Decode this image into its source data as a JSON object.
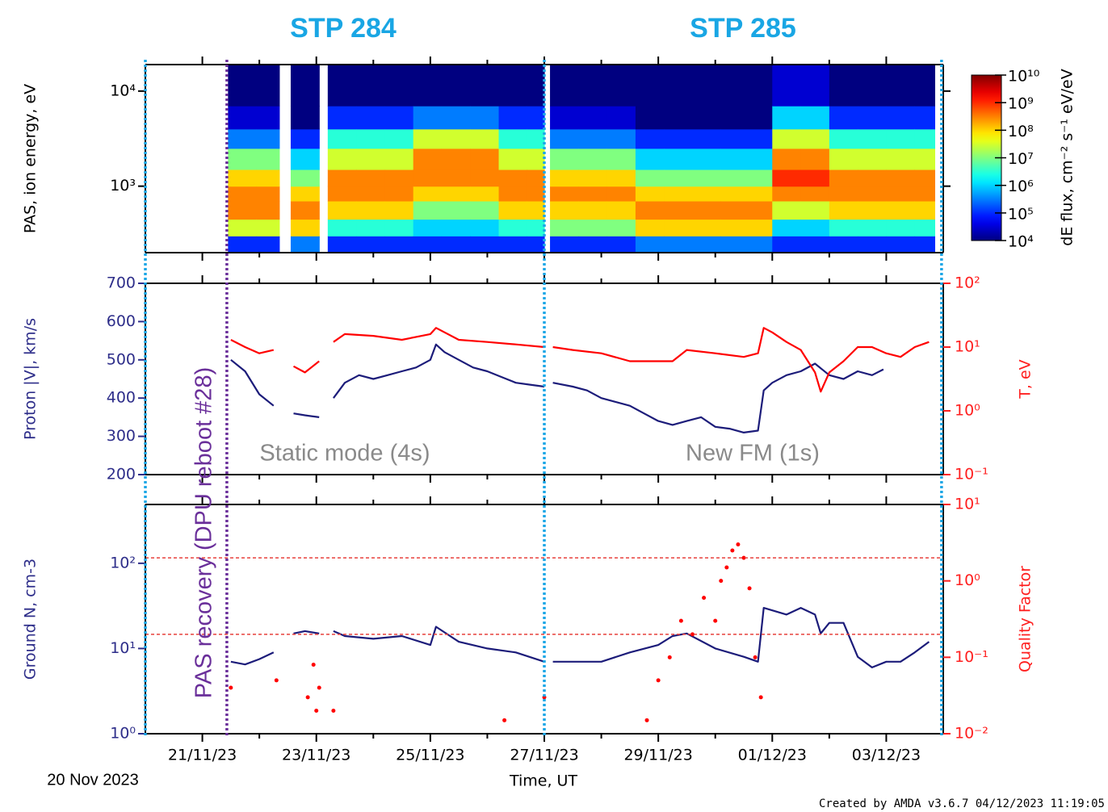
{
  "header": {
    "left": "STP 284",
    "right": "STP 285"
  },
  "annotations": {
    "static": "Static mode (4s)",
    "newfm": "New FM (1s)",
    "recovery": "PAS recovery (DPU reboot #28)"
  },
  "footer": {
    "start_date": "20 Nov 2023",
    "credit": "Created by AMDA v3.6.7 04/12/2023 11:19:05"
  },
  "markers": [
    {
      "x": 0,
      "color": "#1aa6e6"
    },
    {
      "x": 7,
      "color": "#1aa6e6"
    },
    {
      "x": 13.97,
      "color": "#1aa6e6"
    },
    {
      "x": 1.43,
      "color": "#6a2f9a"
    }
  ],
  "chart_data": [
    {
      "type": "heatmap",
      "ylabel": "PAS, ion energy, eV",
      "ycolor": "#000000",
      "ylog": true,
      "ylim": [
        200,
        19000
      ],
      "yticks": [
        {
          "value": 1000,
          "label": "10³"
        },
        {
          "value": 10000,
          "label": "10⁴"
        }
      ],
      "x_edges": [
        1.45,
        1.95,
        2.35,
        2.55,
        3.05,
        3.2,
        3.7,
        4.2,
        4.7,
        5.2,
        5.7,
        6.2,
        6.7,
        7.0,
        7.1,
        7.6,
        8.1,
        8.6,
        9.1,
        9.6,
        10.1,
        10.5,
        11.0,
        11.5,
        12.0,
        12.5,
        13.0,
        13.5,
        13.85
      ],
      "y_edges": [
        200,
        300,
        450,
        700,
        1000,
        1500,
        2500,
        4000,
        7000,
        19000
      ],
      "z": [
        [
          100000,
          30000000,
          300000000,
          300000000,
          100000000,
          10000000,
          300000,
          30000,
          10000
        ],
        [
          100000,
          30000000,
          300000000,
          300000000,
          100000000,
          10000000,
          300000,
          30000,
          10000
        ],
        null,
        [
          300000,
          100000000,
          300000000,
          100000000,
          10000000,
          1000000,
          100000,
          10000,
          10000
        ],
        null,
        [
          100000,
          3000000,
          100000000,
          300000000,
          300000000,
          30000000,
          3000000,
          100000,
          10000
        ],
        [
          100000,
          3000000,
          100000000,
          300000000,
          300000000,
          30000000,
          3000000,
          100000,
          10000
        ],
        [
          100000,
          3000000,
          100000000,
          300000000,
          300000000,
          30000000,
          3000000,
          100000,
          10000
        ],
        [
          100000,
          1000000,
          10000000,
          100000000,
          300000000,
          300000000,
          30000000,
          300000,
          10000
        ],
        [
          100000,
          1000000,
          10000000,
          100000000,
          300000000,
          300000000,
          30000000,
          300000,
          10000
        ],
        [
          100000,
          1000000,
          10000000,
          100000000,
          300000000,
          300000000,
          30000000,
          300000,
          10000
        ],
        [
          100000,
          3000000,
          100000000,
          300000000,
          300000000,
          30000000,
          3000000,
          100000,
          10000
        ],
        [
          100000,
          3000000,
          100000000,
          300000000,
          300000000,
          30000000,
          3000000,
          100000,
          10000
        ],
        null,
        [
          100000,
          10000000,
          100000000,
          300000000,
          100000000,
          10000000,
          300000,
          30000,
          10000
        ],
        [
          100000,
          10000000,
          100000000,
          300000000,
          100000000,
          10000000,
          300000,
          30000,
          10000
        ],
        [
          100000,
          10000000,
          100000000,
          300000000,
          100000000,
          10000000,
          300000,
          30000,
          10000
        ],
        [
          300000,
          100000000,
          300000000,
          100000000,
          10000000,
          1000000,
          100000,
          10000,
          10000
        ],
        [
          300000,
          100000000,
          300000000,
          100000000,
          10000000,
          1000000,
          100000,
          10000,
          10000
        ],
        [
          300000,
          100000000,
          300000000,
          100000000,
          10000000,
          1000000,
          100000,
          10000,
          10000
        ],
        [
          300000,
          100000000,
          300000000,
          100000000,
          10000000,
          1000000,
          100000,
          10000,
          10000
        ],
        [
          300000,
          100000000,
          300000000,
          100000000,
          10000000,
          1000000,
          100000,
          10000,
          10000
        ],
        [
          100000,
          1000000,
          30000000,
          300000000,
          1000000000,
          300000000,
          30000000,
          1000000,
          30000
        ],
        [
          100000,
          1000000,
          30000000,
          300000000,
          1000000000,
          300000000,
          30000000,
          1000000,
          30000
        ],
        [
          100000,
          3000000,
          100000000,
          300000000,
          300000000,
          30000000,
          3000000,
          100000,
          10000
        ],
        [
          100000,
          3000000,
          100000000,
          300000000,
          300000000,
          30000000,
          3000000,
          100000,
          10000
        ],
        [
          100000,
          3000000,
          100000000,
          300000000,
          300000000,
          30000000,
          3000000,
          100000,
          10000
        ],
        [
          100000,
          3000000,
          100000000,
          300000000,
          300000000,
          30000000,
          3000000,
          100000,
          10000
        ]
      ],
      "zlim": [
        10000,
        10000000000
      ],
      "zticks": [
        {
          "value": 10000,
          "label": "10⁴"
        },
        {
          "value": 100000,
          "label": "10⁵"
        },
        {
          "value": 1000000,
          "label": "10⁶"
        },
        {
          "value": 10000000,
          "label": "10⁷"
        },
        {
          "value": 100000000,
          "label": "10⁸"
        },
        {
          "value": 1000000000,
          "label": "10⁹"
        },
        {
          "value": 10000000000,
          "label": "10¹⁰"
        }
      ],
      "colorbar_label": "dE flux, cm⁻² s⁻¹ eV/eV"
    },
    {
      "type": "line",
      "ylabel": "Proton |V|, km/s",
      "ycolor": "#2e2e8a",
      "ylim": [
        200,
        700
      ],
      "yticks": [
        200,
        300,
        400,
        500,
        600,
        700
      ],
      "y2label": "T, eV",
      "y2color": "#ff2020",
      "y2log": true,
      "y2lim": [
        0.1,
        100
      ],
      "y2ticks": [
        {
          "value": 0.1,
          "label": "10⁻¹"
        },
        {
          "value": 1,
          "label": "10⁰"
        },
        {
          "value": 10,
          "label": "10¹"
        },
        {
          "value": 100,
          "label": "10²"
        }
      ],
      "series": [
        {
          "color": "#1c1c7a",
          "mode": "line",
          "x": [
            1.5,
            1.75,
            2.0,
            2.25,
            2.35,
            2.6,
            2.8,
            3.05,
            3.15,
            3.3,
            3.5,
            3.75,
            4.0,
            4.25,
            4.5,
            4.75,
            5.0,
            5.1,
            5.25,
            5.5,
            5.75,
            6.0,
            6.25,
            6.5,
            6.75,
            7.0,
            7.05,
            7.15,
            7.5,
            7.75,
            8.0,
            8.25,
            8.5,
            8.75,
            9.0,
            9.25,
            9.5,
            9.75,
            10.0,
            10.25,
            10.5,
            10.75,
            10.85,
            11.0,
            11.25,
            11.5,
            11.75,
            12.0,
            12.25,
            12.5,
            12.75,
            12.95
          ],
          "values": [
            500,
            470,
            410,
            380,
            null,
            360,
            355,
            350,
            null,
            400,
            440,
            460,
            450,
            460,
            470,
            480,
            500,
            540,
            520,
            500,
            480,
            470,
            455,
            440,
            435,
            430,
            null,
            440,
            430,
            420,
            400,
            390,
            380,
            360,
            340,
            330,
            340,
            350,
            325,
            320,
            310,
            315,
            420,
            440,
            460,
            470,
            490,
            460,
            450,
            470,
            460,
            475
          ]
        },
        {
          "color": "#ff0000",
          "mode": "line",
          "axis": "y2",
          "x": [
            1.5,
            1.75,
            2.0,
            2.25,
            2.35,
            2.6,
            2.8,
            3.05,
            3.15,
            3.3,
            3.5,
            4.0,
            4.5,
            5.0,
            5.1,
            5.5,
            6.0,
            6.5,
            7.0,
            7.05,
            7.15,
            7.5,
            8.0,
            8.5,
            9.0,
            9.25,
            9.5,
            10.0,
            10.5,
            10.75,
            10.85,
            11.0,
            11.25,
            11.5,
            11.75,
            11.85,
            12.0,
            12.25,
            12.5,
            12.75,
            13.0,
            13.25,
            13.5,
            13.75
          ],
          "values": [
            13,
            10,
            8,
            9,
            null,
            5,
            4,
            6,
            null,
            12,
            16,
            15,
            13,
            16,
            20,
            13,
            12,
            11,
            10,
            null,
            10,
            9,
            8,
            6,
            6,
            6,
            9,
            8,
            7,
            8,
            20,
            17,
            12,
            9,
            4,
            2,
            4,
            6,
            10,
            10,
            8,
            7,
            10,
            12
          ]
        }
      ]
    },
    {
      "type": "line",
      "ylabel": "Ground N, cm-3",
      "ycolor": "#2e2e8a",
      "ylog": true,
      "ylim": [
        1,
        490
      ],
      "yticks": [
        {
          "value": 1,
          "label": "10⁰"
        },
        {
          "value": 10,
          "label": "10¹"
        },
        {
          "value": 100,
          "label": "10²"
        }
      ],
      "y2label": "Quality Factor",
      "y2color": "#ff2020",
      "y2log": true,
      "y2lim": [
        0.01,
        10
      ],
      "y2ticks": [
        {
          "value": 0.01,
          "label": "10⁻²"
        },
        {
          "value": 0.1,
          "label": "10⁻¹"
        },
        {
          "value": 1,
          "label": "10⁰"
        },
        {
          "value": 10,
          "label": "10¹"
        }
      ],
      "hlines": [
        {
          "value": 2,
          "axis": "y2",
          "color": "#e8403c"
        },
        {
          "value": 0.2,
          "axis": "y2",
          "color": "#e8403c"
        }
      ],
      "xlabel": "Time, UT",
      "xlim": [
        0,
        14
      ],
      "xticks": [
        {
          "value": 1,
          "label": "21/11/23"
        },
        {
          "value": 3,
          "label": "23/11/23"
        },
        {
          "value": 5,
          "label": "25/11/23"
        },
        {
          "value": 7,
          "label": "27/11/23"
        },
        {
          "value": 9,
          "label": "29/11/23"
        },
        {
          "value": 11,
          "label": "01/12/23"
        },
        {
          "value": 13,
          "label": "03/12/23"
        }
      ],
      "xminorticks": [
        2,
        4,
        6,
        8,
        10,
        12
      ],
      "series": [
        {
          "color": "#1c1c7a",
          "mode": "line",
          "x": [
            1.5,
            1.75,
            2.0,
            2.25,
            2.35,
            2.6,
            2.8,
            3.05,
            3.15,
            3.3,
            3.5,
            4.0,
            4.5,
            5.0,
            5.1,
            5.5,
            6.0,
            6.5,
            7.0,
            7.05,
            7.15,
            7.5,
            8.0,
            8.5,
            9.0,
            9.25,
            9.5,
            10.0,
            10.5,
            10.75,
            10.85,
            11.0,
            11.25,
            11.5,
            11.75,
            11.85,
            12.0,
            12.25,
            12.5,
            12.75,
            13.0,
            13.25,
            13.5,
            13.75
          ],
          "values": [
            7,
            6.5,
            7.5,
            9,
            null,
            15,
            16,
            15,
            null,
            16,
            14,
            13,
            14,
            11,
            18,
            12,
            10,
            9,
            7,
            null,
            7,
            7,
            7,
            9,
            11,
            14,
            15,
            10,
            8,
            7,
            30,
            28,
            25,
            30,
            25,
            15,
            20,
            20,
            8,
            6,
            7,
            7,
            9,
            12
          ]
        },
        {
          "color": "#ff0000",
          "mode": "scatter",
          "axis": "y2",
          "x": [
            2.85,
            2.95,
            3.0,
            3.05,
            7.0,
            8.8,
            9.0,
            9.2,
            9.4,
            9.6,
            9.8,
            10.0,
            10.1,
            10.2,
            10.3,
            10.4,
            10.5,
            10.6,
            10.7,
            10.8,
            1.5,
            2.3,
            3.3,
            6.3
          ],
          "values": [
            0.03,
            0.08,
            0.02,
            0.04,
            0.03,
            0.015,
            0.05,
            0.1,
            0.3,
            0.2,
            0.6,
            0.3,
            1.0,
            1.5,
            2.5,
            3.0,
            2.0,
            0.8,
            0.1,
            0.03,
            0.04,
            0.05,
            0.02,
            0.015
          ]
        }
      ]
    }
  ]
}
